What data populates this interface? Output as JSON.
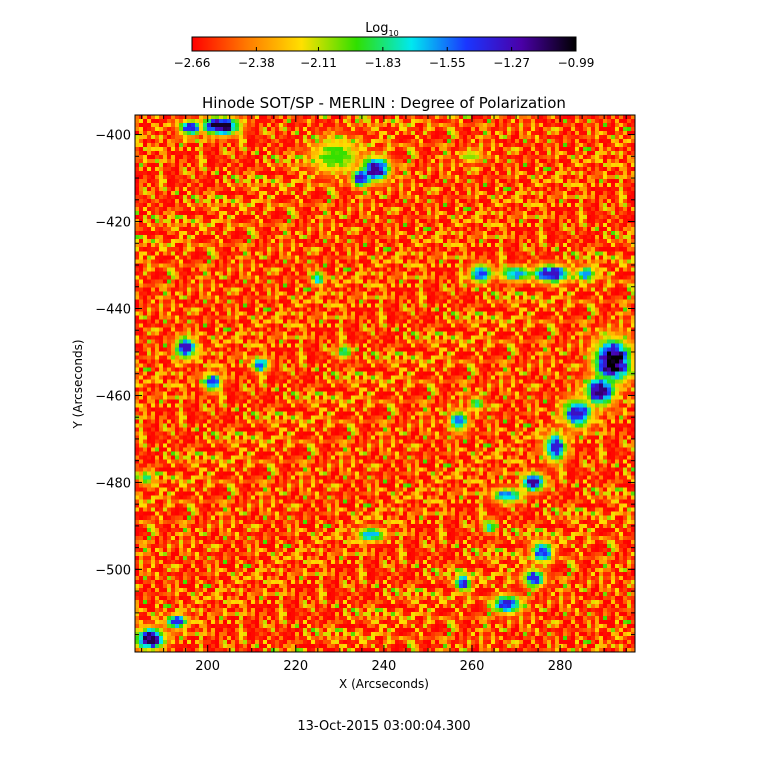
{
  "chart_data": {
    "type": "heatmap",
    "title": "Hinode SOT/SP - MERLIN : Degree of Polarization",
    "xlabel": "X (Arcseconds)",
    "ylabel": "Y (Arcseconds)",
    "footer": "13-Oct-2015 03:00:04.300",
    "xlim": [
      183.5,
      297
    ],
    "ylim": [
      -519,
      -395.5
    ],
    "x_ticks": [
      {
        "value": 200,
        "label": "200"
      },
      {
        "value": 220,
        "label": "220"
      },
      {
        "value": 240,
        "label": "240"
      },
      {
        "value": 260,
        "label": "260"
      },
      {
        "value": 280,
        "label": "280"
      }
    ],
    "y_ticks": [
      {
        "value": -400,
        "label": "−400"
      },
      {
        "value": -420,
        "label": "−420"
      },
      {
        "value": -440,
        "label": "−440"
      },
      {
        "value": -460,
        "label": "−460"
      },
      {
        "value": -480,
        "label": "−480"
      },
      {
        "value": -500,
        "label": "−500"
      }
    ],
    "colorbar": {
      "label_main": "Log",
      "label_sub": "10",
      "range": [
        -2.66,
        -0.99
      ],
      "colors": [
        "#ff0000",
        "#ff7a00",
        "#ffe000",
        "#30e000",
        "#00e8f0",
        "#1a36ff",
        "#4a00a8",
        "#000000"
      ],
      "ticks": [
        {
          "value": -2.66,
          "label": "−2.66"
        },
        {
          "value": -2.38,
          "label": "−2.38"
        },
        {
          "value": -2.11,
          "label": "−2.11"
        },
        {
          "value": -1.83,
          "label": "−1.83"
        },
        {
          "value": -1.55,
          "label": "−1.55"
        },
        {
          "value": -1.27,
          "label": "−1.27"
        },
        {
          "value": -0.99,
          "label": "−0.99"
        }
      ]
    },
    "features": [
      {
        "x": 203,
        "y": -398,
        "rx": 5,
        "ry": 2.5,
        "peak": -1.05
      },
      {
        "x": 196,
        "y": -398.5,
        "rx": 3,
        "ry": 2,
        "peak": -1.35
      },
      {
        "x": 229,
        "y": -405,
        "rx": 7,
        "ry": 5,
        "peak": -1.95
      },
      {
        "x": 238,
        "y": -408,
        "rx": 4,
        "ry": 3.5,
        "peak": -1.2
      },
      {
        "x": 235,
        "y": -410,
        "rx": 3,
        "ry": 2.5,
        "peak": -1.3
      },
      {
        "x": 260,
        "y": -405,
        "rx": 3,
        "ry": 2,
        "peak": -2.05
      },
      {
        "x": 262,
        "y": -432,
        "rx": 3,
        "ry": 2.5,
        "peak": -1.45
      },
      {
        "x": 270,
        "y": -432,
        "rx": 5,
        "ry": 2,
        "peak": -1.6
      },
      {
        "x": 278,
        "y": -432,
        "rx": 5,
        "ry": 2.5,
        "peak": -1.3
      },
      {
        "x": 286,
        "y": -432,
        "rx": 3,
        "ry": 2,
        "peak": -1.6
      },
      {
        "x": 225,
        "y": -433,
        "rx": 2,
        "ry": 2,
        "peak": -1.7
      },
      {
        "x": 292,
        "y": -452,
        "rx": 5,
        "ry": 6,
        "peak": -0.99
      },
      {
        "x": 289,
        "y": -459,
        "rx": 4,
        "ry": 4,
        "peak": -1.15
      },
      {
        "x": 284,
        "y": -464,
        "rx": 4,
        "ry": 4,
        "peak": -1.3
      },
      {
        "x": 279,
        "y": -472,
        "rx": 3,
        "ry": 4,
        "peak": -1.35
      },
      {
        "x": 274,
        "y": -480,
        "rx": 3,
        "ry": 2.5,
        "peak": -1.2
      },
      {
        "x": 268,
        "y": -483,
        "rx": 4,
        "ry": 2,
        "peak": -1.55
      },
      {
        "x": 195,
        "y": -449,
        "rx": 3,
        "ry": 3,
        "peak": -1.3
      },
      {
        "x": 201,
        "y": -457,
        "rx": 2.5,
        "ry": 2.5,
        "peak": -1.45
      },
      {
        "x": 212,
        "y": -453,
        "rx": 2.5,
        "ry": 2,
        "peak": -1.5
      },
      {
        "x": 231,
        "y": -450,
        "rx": 2,
        "ry": 2,
        "peak": -1.8
      },
      {
        "x": 257,
        "y": -466,
        "rx": 2.5,
        "ry": 3,
        "peak": -1.55
      },
      {
        "x": 261,
        "y": -462,
        "rx": 2,
        "ry": 2,
        "peak": -1.8
      },
      {
        "x": 237,
        "y": -492,
        "rx": 4,
        "ry": 2,
        "peak": -1.65
      },
      {
        "x": 258,
        "y": -503,
        "rx": 2,
        "ry": 2.5,
        "peak": -1.35
      },
      {
        "x": 264,
        "y": -490,
        "rx": 2,
        "ry": 2,
        "peak": -1.75
      },
      {
        "x": 276,
        "y": -496,
        "rx": 3,
        "ry": 3,
        "peak": -1.45
      },
      {
        "x": 274,
        "y": -502,
        "rx": 3,
        "ry": 2.5,
        "peak": -1.4
      },
      {
        "x": 268,
        "y": -508,
        "rx": 4,
        "ry": 2.5,
        "peak": -1.35
      },
      {
        "x": 187,
        "y": -516,
        "rx": 4,
        "ry": 3,
        "peak": -1.1
      },
      {
        "x": 193,
        "y": -512,
        "rx": 3,
        "ry": 2,
        "peak": -1.4
      },
      {
        "x": 186,
        "y": -479,
        "rx": 2,
        "ry": 2,
        "peak": -1.8
      }
    ]
  }
}
